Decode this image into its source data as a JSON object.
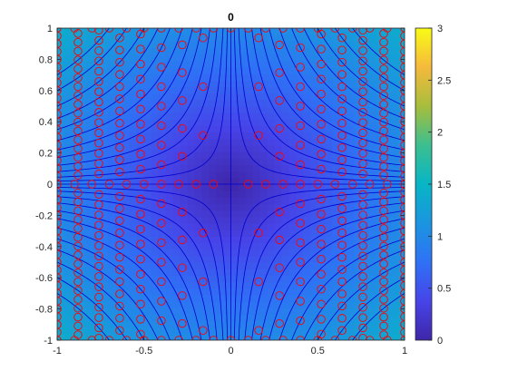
{
  "chart_data": {
    "type": "heatmap",
    "title": "0",
    "xlabel": "",
    "ylabel": "",
    "xlim": [
      -1,
      1
    ],
    "ylim": [
      -1,
      1
    ],
    "x_ticks": [
      "-1",
      "-0.5",
      "0",
      "0.5",
      "1"
    ],
    "y_ticks": [
      "-1",
      "-0.8",
      "-0.6",
      "-0.4",
      "-0.2",
      "0",
      "0.2",
      "0.4",
      "0.6",
      "0.8",
      "1"
    ],
    "colorbar": {
      "colormap": "parula",
      "clim": [
        0,
        3
      ],
      "ticks": [
        "0",
        "0.5",
        "1",
        "1.5",
        "2",
        "2.5",
        "3"
      ]
    },
    "field": "sqrt(x^2 + y^2)",
    "contours": {
      "color": "#0000cc",
      "function": "x*y",
      "levels": [
        -0.7,
        -0.6,
        -0.5,
        -0.42,
        -0.35,
        -0.28,
        -0.22,
        -0.17,
        -0.12,
        -0.08,
        -0.045,
        -0.02,
        0,
        0.02,
        0.045,
        0.08,
        0.12,
        0.17,
        0.22,
        0.28,
        0.35,
        0.42,
        0.5,
        0.6,
        0.7
      ]
    },
    "markers": {
      "symbol": "circle",
      "color": "#ff0000",
      "grid": {
        "start": -1,
        "end": 1,
        "count": 21
      },
      "path_step": 0.12,
      "level_step": 0.05
    },
    "grid": false
  }
}
